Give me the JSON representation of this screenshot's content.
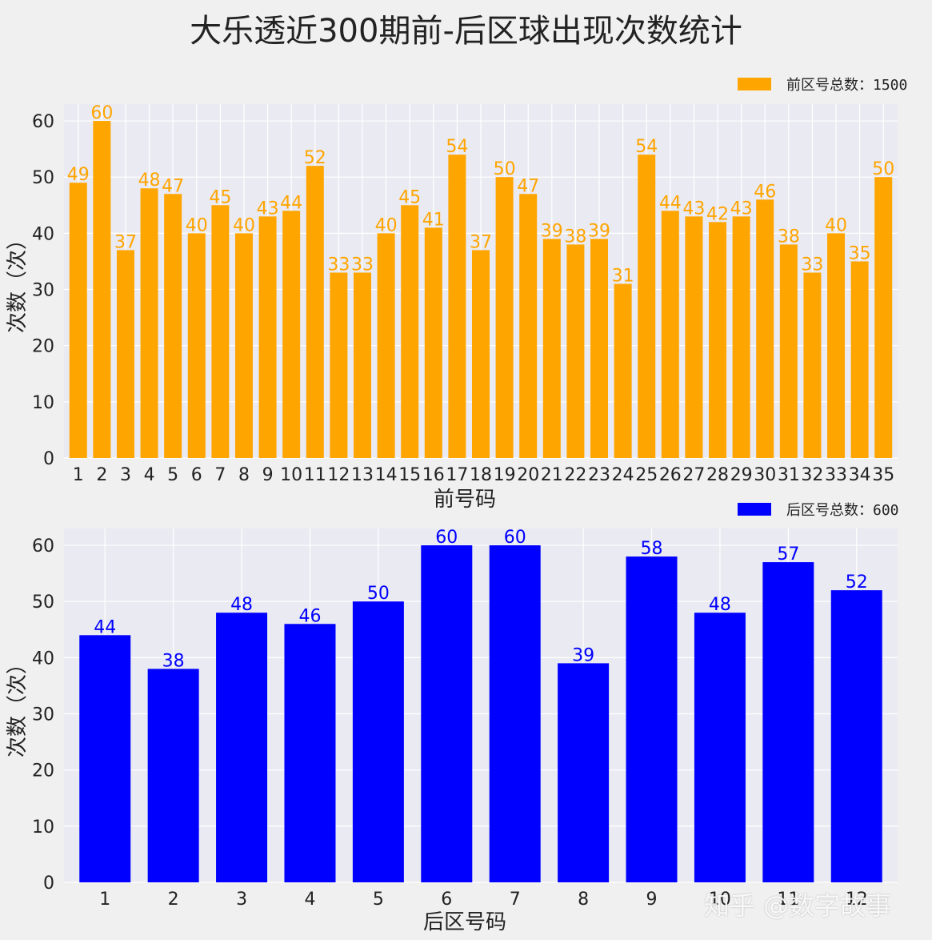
{
  "title": "大乐透近300期前-后区球出现次数统计",
  "watermark": "知乎 @数字故事",
  "chart_data": [
    {
      "type": "bar",
      "xlabel": "前号码",
      "ylabel": "次数（次）",
      "ylim": [
        0,
        63
      ],
      "yticks": [
        0,
        10,
        20,
        30,
        40,
        50,
        60
      ],
      "grid": true,
      "legend_position": "top-right",
      "color": "#ffa500",
      "categories": [
        "1",
        "2",
        "3",
        "4",
        "5",
        "6",
        "7",
        "8",
        "9",
        "10",
        "11",
        "12",
        "13",
        "14",
        "15",
        "16",
        "17",
        "18",
        "19",
        "20",
        "21",
        "22",
        "23",
        "24",
        "25",
        "26",
        "27",
        "28",
        "29",
        "30",
        "31",
        "32",
        "33",
        "34",
        "35"
      ],
      "series": [
        {
          "name": "前区号总数：1500",
          "values": [
            49,
            60,
            37,
            48,
            47,
            40,
            45,
            40,
            43,
            44,
            52,
            33,
            33,
            40,
            45,
            41,
            54,
            37,
            50,
            47,
            39,
            38,
            39,
            31,
            54,
            44,
            43,
            42,
            43,
            46,
            38,
            33,
            40,
            35,
            50
          ]
        }
      ]
    },
    {
      "type": "bar",
      "xlabel": "后区号码",
      "ylabel": "次数（次）",
      "ylim": [
        0,
        63
      ],
      "yticks": [
        0,
        10,
        20,
        30,
        40,
        50,
        60
      ],
      "grid": true,
      "legend_position": "top-right",
      "color": "#0000ff",
      "categories": [
        "1",
        "2",
        "3",
        "4",
        "5",
        "6",
        "7",
        "8",
        "9",
        "10",
        "11",
        "12"
      ],
      "series": [
        {
          "name": "后区号总数：600",
          "values": [
            44,
            38,
            48,
            46,
            50,
            60,
            60,
            39,
            58,
            48,
            57,
            52
          ]
        }
      ]
    }
  ]
}
